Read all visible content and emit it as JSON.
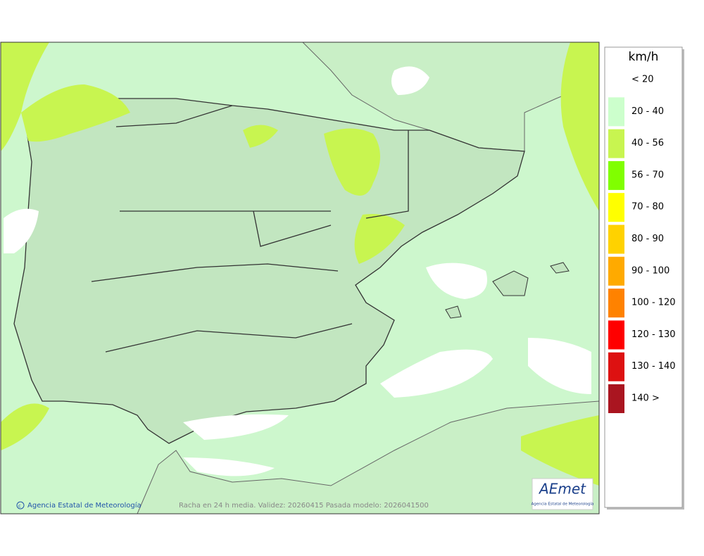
{
  "legend": {
    "unit": "km/h",
    "items": [
      {
        "label": "< 20"
      },
      {
        "label": "20 - 40",
        "color": "#ccffcc"
      },
      {
        "label": "40 - 56",
        "color": "#c8f550"
      },
      {
        "label": "56 - 70",
        "color": "#80ff00"
      },
      {
        "label": "70 - 80",
        "color": "#ffff00"
      },
      {
        "label": "80 - 90",
        "color": "#ffd200"
      },
      {
        "label": "90 - 100",
        "color": "#ffaa00"
      },
      {
        "label": "100 - 120",
        "color": "#ff8200"
      },
      {
        "label": "120 - 130",
        "color": "#ff0000"
      },
      {
        "label": "130 - 140",
        "color": "#dd1111"
      },
      {
        "label": "140 >",
        "color": "#aa1520"
      }
    ]
  },
  "map": {
    "credit": "Agencia Estatal de Meteorología",
    "caption": "Racha en 24 h media. Validez: 20260415 Pasada modelo: 2026041500",
    "logo": {
      "name": "AEmet",
      "subtitle": "Agencia Estatal de Meteorología"
    }
  }
}
